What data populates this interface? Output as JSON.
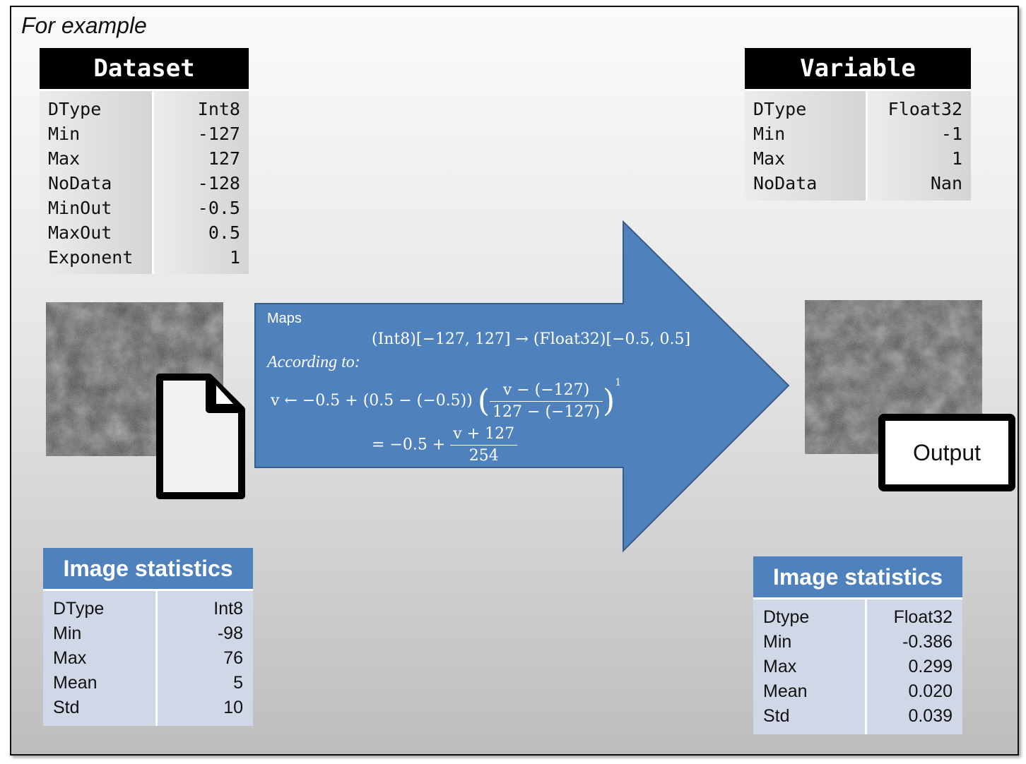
{
  "caption": "For example",
  "dataset": {
    "title": "Dataset",
    "rows": [
      {
        "key": "DType",
        "value": "Int8"
      },
      {
        "key": "Min",
        "value": "-127"
      },
      {
        "key": "Max",
        "value": "127"
      },
      {
        "key": "NoData",
        "value": "-128"
      },
      {
        "key": "MinOut",
        "value": "-0.5"
      },
      {
        "key": "MaxOut",
        "value": "0.5"
      },
      {
        "key": "Exponent",
        "value": "1"
      }
    ]
  },
  "variable": {
    "title": "Variable",
    "rows": [
      {
        "key": "DType",
        "value": "Float32"
      },
      {
        "key": "Min",
        "value": "-1"
      },
      {
        "key": "Max",
        "value": "1"
      },
      {
        "key": "NoData",
        "value": "Nan"
      }
    ]
  },
  "input_stats": {
    "title": "Image statistics",
    "rows": [
      {
        "key": "DType",
        "value": "Int8"
      },
      {
        "key": "Min",
        "value": "-98"
      },
      {
        "key": "Max",
        "value": "76"
      },
      {
        "key": "Mean",
        "value": "5"
      },
      {
        "key": "Std",
        "value": "10"
      }
    ]
  },
  "output_stats": {
    "title": "Image statistics",
    "rows": [
      {
        "key": "Dtype",
        "value": "Float32"
      },
      {
        "key": "Min",
        "value": "-0.386"
      },
      {
        "key": "Max",
        "value": "0.299"
      },
      {
        "key": "Mean",
        "value": "0.020"
      },
      {
        "key": "Std",
        "value": "0.039"
      }
    ]
  },
  "arrow": {
    "label": "Maps",
    "mapping": "(Int8)[−127, 127] → (Float32)[−0.5, 0.5]",
    "according": "According to:",
    "eq1_lhs": "v ← −0.5 + (0.5 − (−0.5))",
    "eq1_num": "v − (−127)",
    "eq1_den": "127 − (−127)",
    "eq1_exp": "1",
    "eq2_lhs": "= −0.5 +",
    "eq2_num": "v + 127",
    "eq2_den": "254"
  },
  "output_label": "Output",
  "colors": {
    "arrow_fill": "#4f81bd",
    "arrow_stroke": "#385d8a",
    "stats_header": "#4f81bd",
    "stats_body": "#d0d8e8"
  },
  "icons": {
    "input_file": "document-icon",
    "input_image": "satellite-image",
    "output_image": "satellite-image"
  }
}
